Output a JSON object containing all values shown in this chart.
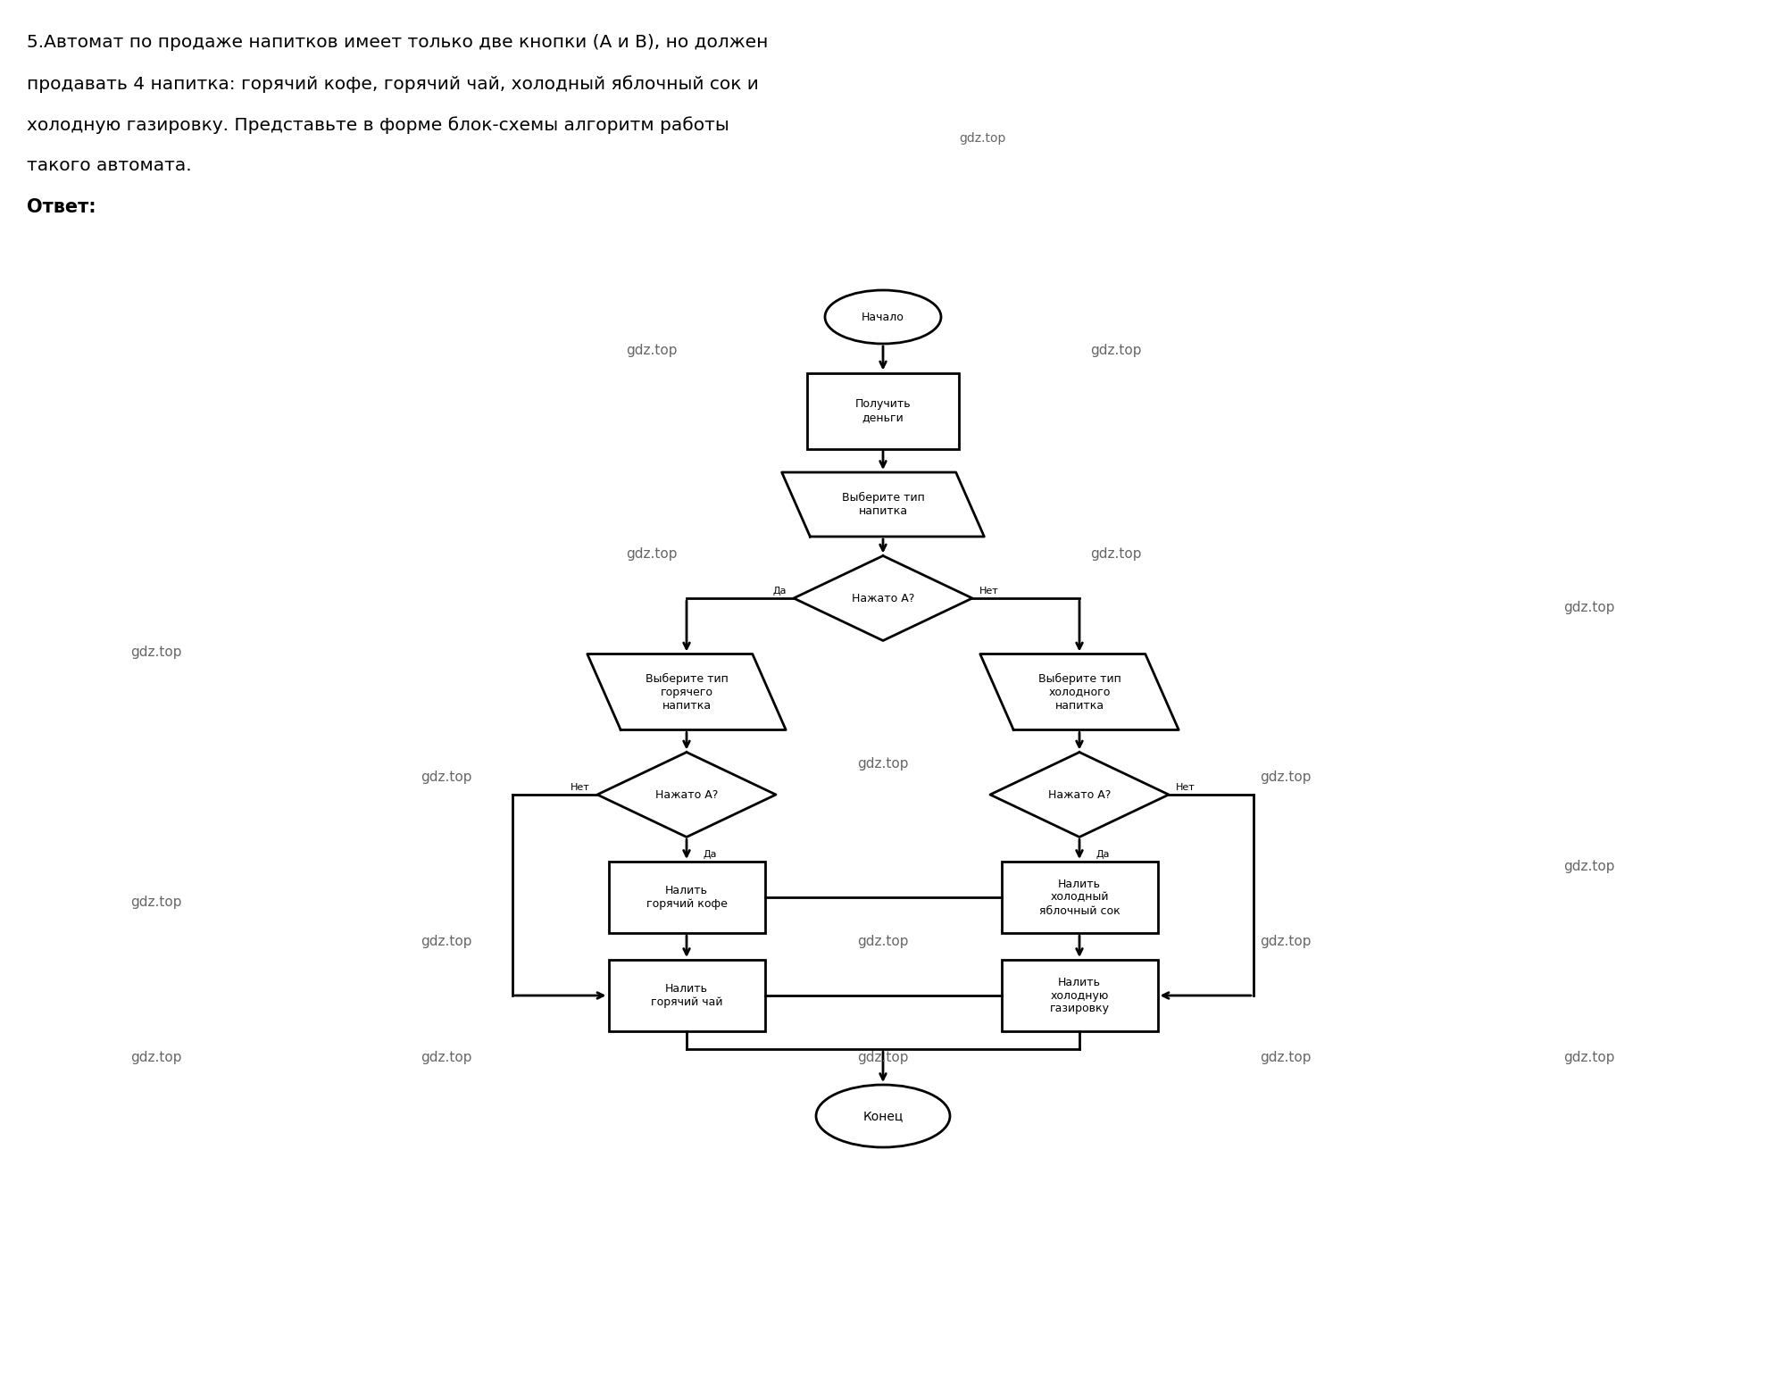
{
  "title_line1": "5.Автомат по продаже напитков имеет только две кнопки (А и В), но должен",
  "title_line2": "продавать 4 напитка: горячий кофе, горячий чай, холодный яблочный сок и",
  "title_line3": "холодную газировку. Представьте в форме блок-схемы алгоритм работы",
  "title_line4": "такого автомата.",
  "gdz_top_title": "gdz.top",
  "answer_label": "Ответ:",
  "gdz_top": "gdz.top",
  "node_start": "Начало",
  "node_money": "Получить\nденьги",
  "node_choose_type": "Выберите тип\nнапитка",
  "node_pressed_a1": "Нажато А?",
  "node_hot_choose": "Выберите тип\nгорячего\nнапитка",
  "node_cold_choose": "Выберите тип\nхолодного\nнапитка",
  "node_pressed_a2": "Нажато А?",
  "node_pressed_a3": "Нажато А?",
  "node_hot_coffee": "Налить\nгорячий кофе",
  "node_hot_tea": "Налить\nгорячий чай",
  "node_cold_juice": "Налить\nхолодный\nяблочный сок",
  "node_cold_soda": "Налить\nхолодную\nгазировку",
  "node_end": "Конец",
  "yes": "Да",
  "no": "Нет",
  "bg_color": "#ffffff"
}
